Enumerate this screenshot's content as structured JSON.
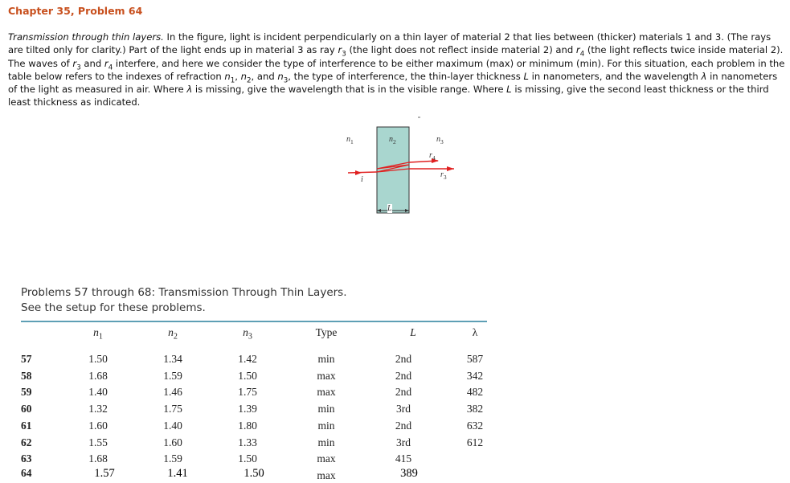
{
  "header": {
    "title": "Chapter 35, Problem 64"
  },
  "problem": {
    "segments": [
      {
        "i": "Transmission through thin layers."
      },
      " In the figure, light is incident perpendicularly on a thin layer of material 2 that lies between (thicker) materials 1 and 3. (The rays are tilted only for clarity.) Part of the light ends up in material 3 as ray ",
      {
        "i": "r",
        "sub": "3"
      },
      " (the light does not reflect inside material 2) and ",
      {
        "i": "r",
        "sub": "4"
      },
      " (the light reflects twice inside material 2). The waves of ",
      {
        "i": "r",
        "sub": "3"
      },
      " and ",
      {
        "i": "r",
        "sub": "4"
      },
      " interfere, and here we consider the type of interference to be either maximum (max) or minimum (min). For this situation, each problem in the table below refers to the indexes of refraction ",
      {
        "i": "n",
        "sub": "1"
      },
      ", ",
      {
        "i": "n",
        "sub": "2"
      },
      ", and ",
      {
        "i": "n",
        "sub": "3"
      },
      ", the type of interference, the thin-layer thickness ",
      {
        "i": "L"
      },
      " in nanometers, and the wavelength ",
      {
        "i": "λ"
      },
      " in nanometers of the light as measured in air. Where ",
      {
        "i": "λ"
      },
      " is missing, give the wavelength that is in the visible range. Where ",
      {
        "i": "L"
      },
      " is missing, give the second least thickness or the third least thickness as indicated."
    ]
  },
  "figure": {
    "labels": [
      {
        "i": "n",
        "sub": "1"
      },
      {
        "i": "n",
        "sub": "2"
      },
      {
        "i": "n",
        "sub": "3"
      },
      {
        "i": "r",
        "sub": "4"
      },
      {
        "i": "r",
        "sub": "3"
      },
      {
        "i": "i"
      },
      {
        "i": "L"
      }
    ]
  },
  "table": {
    "caption": [
      "Problems 57 through 68: Transmission Through Thin Layers.",
      "See the setup for these problems."
    ],
    "headers": [
      {
        "i": "n",
        "sub": "1"
      },
      {
        "i": "n",
        "sub": "2"
      },
      {
        "i": "n",
        "sub": "3"
      },
      "Type",
      {
        "i": "L"
      },
      "λ"
    ],
    "rows": [
      [
        "57",
        "1.50",
        "1.34",
        "1.42",
        "min",
        "2nd",
        "587"
      ],
      [
        "58",
        "1.68",
        "1.59",
        "1.50",
        "max",
        "2nd",
        "342"
      ],
      [
        "59",
        "1.40",
        "1.46",
        "1.75",
        "max",
        "2nd",
        "482"
      ],
      [
        "60",
        "1.32",
        "1.75",
        "1.39",
        "min",
        "3rd",
        "382"
      ],
      [
        "61",
        "1.60",
        "1.40",
        "1.80",
        "min",
        "2nd",
        "632"
      ],
      [
        "62",
        "1.55",
        "1.60",
        "1.33",
        "min",
        "3rd",
        "612"
      ],
      [
        "63",
        "1.68",
        "1.59",
        "1.50",
        "max",
        "415",
        null
      ],
      [
        "64",
        "1.57",
        "1.41",
        "1.50",
        "max",
        "389",
        null
      ]
    ]
  }
}
